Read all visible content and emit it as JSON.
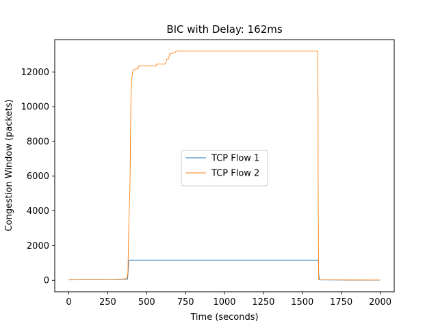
{
  "chart_data": {
    "type": "line",
    "title": "BIC with Delay: 162ms",
    "xlabel": "Time (seconds)",
    "ylabel": "Congestion Window (packets)",
    "xlim": [
      -90,
      2090
    ],
    "ylim": [
      -660,
      13860
    ],
    "xticks": [
      0,
      250,
      500,
      750,
      1000,
      1250,
      1500,
      1750,
      2000
    ],
    "yticks": [
      0,
      2000,
      4000,
      6000,
      8000,
      10000,
      12000
    ],
    "grid": false,
    "legend_position": "center",
    "series": [
      {
        "name": "TCP Flow 1",
        "color": "#1f77b4",
        "x": [
          0,
          100,
          200,
          250,
          300,
          350,
          378,
          382,
          385,
          500,
          750,
          1000,
          1250,
          1500,
          1603,
          1606,
          1610,
          1750,
          2000
        ],
        "y": [
          30,
          40,
          45,
          50,
          55,
          60,
          70,
          600,
          1150,
          1150,
          1150,
          1150,
          1150,
          1150,
          1150,
          300,
          20,
          15,
          10
        ]
      },
      {
        "name": "TCP Flow 2",
        "color": "#ff7f0e",
        "x": [
          0,
          100,
          200,
          250,
          260,
          300,
          350,
          375,
          380,
          382,
          385,
          388,
          390,
          392,
          394,
          396,
          398,
          400,
          405,
          410,
          420,
          425,
          445,
          450,
          500,
          560,
          565,
          570,
          575,
          580,
          620,
          630,
          640,
          650,
          660,
          670,
          680,
          690,
          700,
          750,
          1000,
          1250,
          1500,
          1600,
          1602,
          1605,
          1610,
          1750,
          2000
        ],
        "y": [
          20,
          30,
          35,
          40,
          60,
          70,
          80,
          100,
          500,
          1500,
          3000,
          4000,
          4500,
          5000,
          6000,
          8000,
          9500,
          10800,
          11600,
          12000,
          12150,
          12150,
          12200,
          12350,
          12350,
          12350,
          12450,
          12450,
          12450,
          12450,
          12450,
          12750,
          12750,
          13050,
          13050,
          13100,
          13100,
          13200,
          13200,
          13200,
          13200,
          13200,
          13200,
          13200,
          5000,
          50,
          30,
          20,
          15
        ]
      }
    ]
  }
}
